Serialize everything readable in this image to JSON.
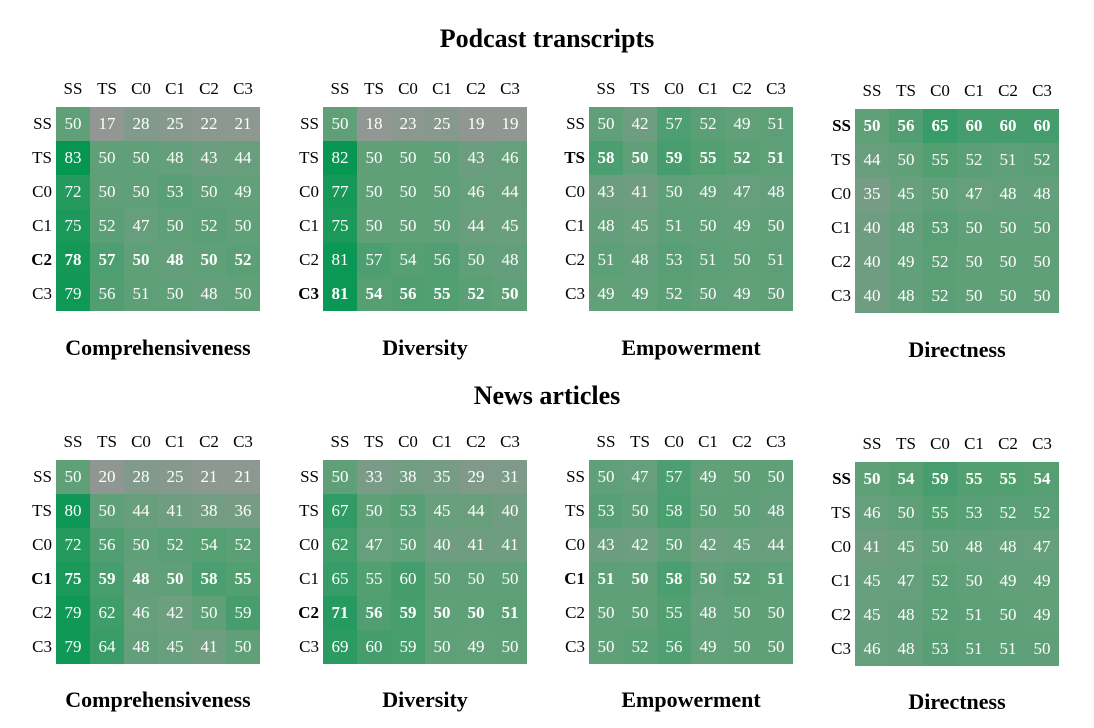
{
  "sections": [
    {
      "title": "Podcast transcripts"
    },
    {
      "title": "News articles"
    }
  ],
  "chart_data": [
    {
      "type": "heatmap",
      "group": "Podcast transcripts",
      "title": "Comprehensiveness",
      "rows": [
        "SS",
        "TS",
        "C0",
        "C1",
        "C2",
        "C3"
      ],
      "cols": [
        "SS",
        "TS",
        "C0",
        "C1",
        "C2",
        "C3"
      ],
      "bold_row": "C2",
      "values": [
        [
          50,
          17,
          28,
          25,
          22,
          21
        ],
        [
          83,
          50,
          50,
          48,
          43,
          44
        ],
        [
          72,
          50,
          50,
          53,
          50,
          49
        ],
        [
          75,
          52,
          47,
          50,
          52,
          50
        ],
        [
          78,
          57,
          50,
          48,
          50,
          52
        ],
        [
          79,
          56,
          51,
          50,
          48,
          50
        ]
      ]
    },
    {
      "type": "heatmap",
      "group": "Podcast transcripts",
      "title": "Diversity",
      "rows": [
        "SS",
        "TS",
        "C0",
        "C1",
        "C2",
        "C3"
      ],
      "cols": [
        "SS",
        "TS",
        "C0",
        "C1",
        "C2",
        "C3"
      ],
      "bold_row": "C3",
      "values": [
        [
          50,
          18,
          23,
          25,
          19,
          19
        ],
        [
          82,
          50,
          50,
          50,
          43,
          46
        ],
        [
          77,
          50,
          50,
          50,
          46,
          44
        ],
        [
          75,
          50,
          50,
          50,
          44,
          45
        ],
        [
          81,
          57,
          54,
          56,
          50,
          48
        ],
        [
          81,
          54,
          56,
          55,
          52,
          50
        ]
      ]
    },
    {
      "type": "heatmap",
      "group": "Podcast transcripts",
      "title": "Empowerment",
      "rows": [
        "SS",
        "TS",
        "C0",
        "C1",
        "C2",
        "C3"
      ],
      "cols": [
        "SS",
        "TS",
        "C0",
        "C1",
        "C2",
        "C3"
      ],
      "bold_row": "TS",
      "values": [
        [
          50,
          42,
          57,
          52,
          49,
          51
        ],
        [
          58,
          50,
          59,
          55,
          52,
          51
        ],
        [
          43,
          41,
          50,
          49,
          47,
          48
        ],
        [
          48,
          45,
          51,
          50,
          49,
          50
        ],
        [
          51,
          48,
          53,
          51,
          50,
          51
        ],
        [
          49,
          49,
          52,
          50,
          49,
          50
        ]
      ]
    },
    {
      "type": "heatmap",
      "group": "Podcast transcripts",
      "title": "Directness",
      "rows": [
        "SS",
        "TS",
        "C0",
        "C1",
        "C2",
        "C3"
      ],
      "cols": [
        "SS",
        "TS",
        "C0",
        "C1",
        "C2",
        "C3"
      ],
      "bold_row": "SS",
      "values": [
        [
          50,
          56,
          65,
          60,
          60,
          60
        ],
        [
          44,
          50,
          55,
          52,
          51,
          52
        ],
        [
          35,
          45,
          50,
          47,
          48,
          48
        ],
        [
          40,
          48,
          53,
          50,
          50,
          50
        ],
        [
          40,
          49,
          52,
          50,
          50,
          50
        ],
        [
          40,
          48,
          52,
          50,
          50,
          50
        ]
      ]
    },
    {
      "type": "heatmap",
      "group": "News articles",
      "title": "Comprehensiveness",
      "rows": [
        "SS",
        "TS",
        "C0",
        "C1",
        "C2",
        "C3"
      ],
      "cols": [
        "SS",
        "TS",
        "C0",
        "C1",
        "C2",
        "C3"
      ],
      "bold_row": "C1",
      "values": [
        [
          50,
          20,
          28,
          25,
          21,
          21
        ],
        [
          80,
          50,
          44,
          41,
          38,
          36
        ],
        [
          72,
          56,
          50,
          52,
          54,
          52
        ],
        [
          75,
          59,
          48,
          50,
          58,
          55
        ],
        [
          79,
          62,
          46,
          42,
          50,
          59
        ],
        [
          79,
          64,
          48,
          45,
          41,
          50
        ]
      ]
    },
    {
      "type": "heatmap",
      "group": "News articles",
      "title": "Diversity",
      "rows": [
        "SS",
        "TS",
        "C0",
        "C1",
        "C2",
        "C3"
      ],
      "cols": [
        "SS",
        "TS",
        "C0",
        "C1",
        "C2",
        "C3"
      ],
      "bold_row": "C2",
      "values": [
        [
          50,
          33,
          38,
          35,
          29,
          31
        ],
        [
          67,
          50,
          53,
          45,
          44,
          40
        ],
        [
          62,
          47,
          50,
          40,
          41,
          41
        ],
        [
          65,
          55,
          60,
          50,
          50,
          50
        ],
        [
          71,
          56,
          59,
          50,
          50,
          51
        ],
        [
          69,
          60,
          59,
          50,
          49,
          50
        ]
      ]
    },
    {
      "type": "heatmap",
      "group": "News articles",
      "title": "Empowerment",
      "rows": [
        "SS",
        "TS",
        "C0",
        "C1",
        "C2",
        "C3"
      ],
      "cols": [
        "SS",
        "TS",
        "C0",
        "C1",
        "C2",
        "C3"
      ],
      "bold_row": "C1",
      "values": [
        [
          50,
          47,
          57,
          49,
          50,
          50
        ],
        [
          53,
          50,
          58,
          50,
          50,
          48
        ],
        [
          43,
          42,
          50,
          42,
          45,
          44
        ],
        [
          51,
          50,
          58,
          50,
          52,
          51
        ],
        [
          50,
          50,
          55,
          48,
          50,
          50
        ],
        [
          50,
          52,
          56,
          49,
          50,
          50
        ]
      ]
    },
    {
      "type": "heatmap",
      "group": "News articles",
      "title": "Directness",
      "rows": [
        "SS",
        "TS",
        "C0",
        "C1",
        "C2",
        "C3"
      ],
      "cols": [
        "SS",
        "TS",
        "C0",
        "C1",
        "C2",
        "C3"
      ],
      "bold_row": "SS",
      "values": [
        [
          50,
          54,
          59,
          55,
          55,
          54
        ],
        [
          46,
          50,
          55,
          53,
          52,
          52
        ],
        [
          41,
          45,
          50,
          48,
          48,
          47
        ],
        [
          45,
          47,
          52,
          50,
          49,
          49
        ],
        [
          45,
          48,
          52,
          51,
          50,
          49
        ],
        [
          46,
          48,
          53,
          51,
          51,
          50
        ]
      ]
    }
  ]
}
